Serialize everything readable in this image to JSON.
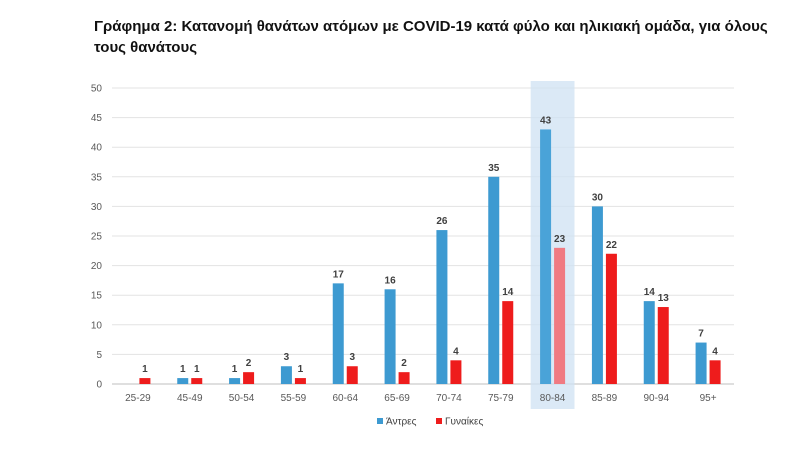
{
  "title": "Γράφημα 2: Κατανομή θανάτων ατόμων με COVID-19 κατά φύλο και ηλικιακή ομάδα, για όλους τους θανάτους",
  "chart_data": {
    "type": "bar",
    "categories": [
      "25-29",
      "45-49",
      "50-54",
      "55-59",
      "60-64",
      "65-69",
      "70-74",
      "75-79",
      "80-84",
      "85-89",
      "90-94",
      "95+"
    ],
    "series": [
      {
        "name": "Άντρες",
        "color": "#3d9ad1",
        "values": [
          0,
          1,
          1,
          3,
          17,
          16,
          26,
          35,
          43,
          30,
          14,
          7
        ]
      },
      {
        "name": "Γυναίκες",
        "color": "#ee1c1c",
        "values": [
          1,
          1,
          2,
          1,
          3,
          2,
          4,
          14,
          23,
          22,
          13,
          4
        ]
      }
    ],
    "yticks": [
      "0",
      "5",
      "10",
      "15",
      "20",
      "25",
      "30",
      "35",
      "40",
      "45",
      "50"
    ],
    "ylim": [
      0,
      50
    ],
    "highlight_category": "80-84",
    "highlight_color": "#cfe2f3",
    "highlight_female_color": "#f07a82",
    "highlight_male_color": "#4aa3d8",
    "grid": true,
    "legend_position": "bottom"
  }
}
